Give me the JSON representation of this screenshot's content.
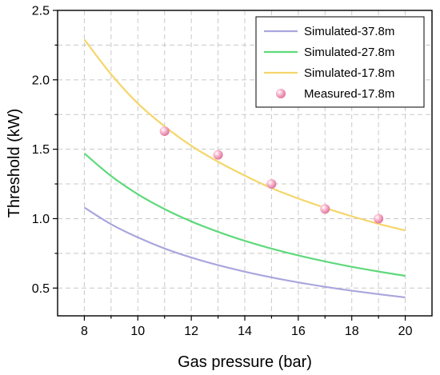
{
  "chart_data": {
    "type": "line",
    "xlabel": "Gas pressure (bar)",
    "ylabel": "Threshold (kW)",
    "xlim": [
      7,
      21
    ],
    "ylim": [
      0.3,
      2.5
    ],
    "x_ticks": [
      "8",
      "10",
      "12",
      "14",
      "16",
      "18",
      "20"
    ],
    "y_ticks": [
      "0.5",
      "1.0",
      "1.5",
      "2.0",
      "2.5"
    ],
    "grid": "dashed",
    "legend_position": "top-right",
    "series": [
      {
        "name": "Simulated-37.8m",
        "kind": "line",
        "color": "#a9a6dd",
        "x": [
          8,
          9,
          10,
          11,
          12,
          13,
          14,
          15,
          16,
          17,
          18,
          19,
          20
        ],
        "y": [
          1.08,
          0.96,
          0.865,
          0.785,
          0.72,
          0.665,
          0.618,
          0.577,
          0.541,
          0.509,
          0.481,
          0.456,
          0.433
        ]
      },
      {
        "name": "Simulated-27.8m",
        "kind": "line",
        "color": "#5fd97b",
        "x": [
          8,
          9,
          10,
          11,
          12,
          13,
          14,
          15,
          16,
          17,
          18,
          19,
          20
        ],
        "y": [
          1.47,
          1.307,
          1.176,
          1.069,
          0.98,
          0.905,
          0.84,
          0.784,
          0.735,
          0.692,
          0.653,
          0.619,
          0.588
        ]
      },
      {
        "name": "Simulated-17.8m",
        "kind": "line",
        "color": "#f5d66b",
        "x": [
          8,
          9,
          10,
          11,
          12,
          13,
          14,
          15,
          16,
          17,
          18,
          19,
          20
        ],
        "y": [
          2.29,
          2.04,
          1.83,
          1.665,
          1.525,
          1.41,
          1.31,
          1.22,
          1.145,
          1.078,
          1.017,
          0.963,
          0.915
        ]
      },
      {
        "name": "Measured-17.8m",
        "kind": "scatter",
        "color": "#f4a6c3",
        "x": [
          11,
          13,
          15,
          17,
          19
        ],
        "y": [
          1.63,
          1.46,
          1.25,
          1.07,
          1.0
        ]
      }
    ]
  }
}
